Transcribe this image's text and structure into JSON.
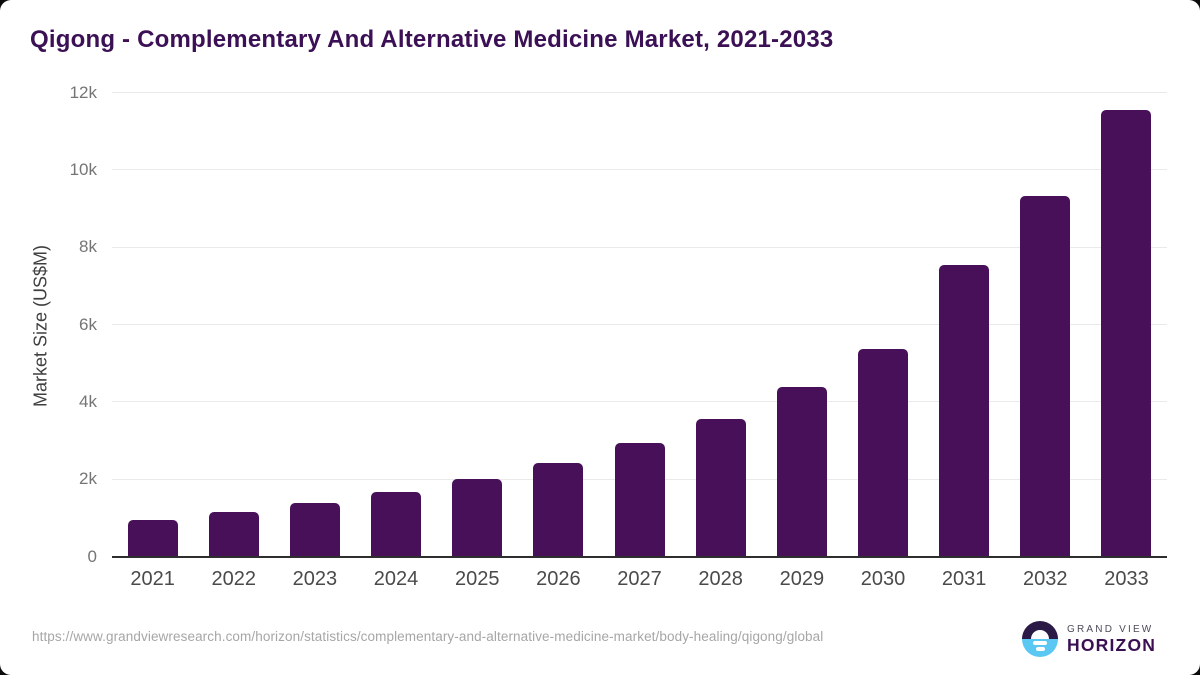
{
  "title": "Qigong - Complementary And Alternative Medicine Market, 2021-2033",
  "colors": {
    "bar": "#471058",
    "title_text": "#3b1054",
    "gridline": "#eaeaea",
    "axis_line": "#2e2e2e",
    "y_tick_text": "#757575",
    "x_tick_text": "#4a4a4a",
    "url_text": "#a6a6a6",
    "logo_dark": "#2b1a46",
    "logo_blue": "#5ac8f2"
  },
  "chart_data": {
    "type": "bar",
    "title": "Qigong - Complementary And Alternative Medicine Market, 2021-2033",
    "categories": [
      "2021",
      "2022",
      "2023",
      "2024",
      "2025",
      "2026",
      "2027",
      "2028",
      "2029",
      "2030",
      "2031",
      "2032",
      "2033"
    ],
    "values": [
      960,
      1160,
      1400,
      1670,
      2010,
      2430,
      2940,
      3560,
      4390,
      5370,
      7560,
      9330,
      11550
    ],
    "xlabel": "",
    "ylabel": "Market Size (US$M)",
    "ylim": [
      0,
      12000
    ],
    "yticks": [
      {
        "value": 0,
        "label": "0"
      },
      {
        "value": 2000,
        "label": "2k"
      },
      {
        "value": 4000,
        "label": "4k"
      },
      {
        "value": 6000,
        "label": "6k"
      },
      {
        "value": 8000,
        "label": "8k"
      },
      {
        "value": 10000,
        "label": "10k"
      },
      {
        "value": 12000,
        "label": "12k"
      }
    ],
    "grid": "horizontal",
    "legend": "none",
    "bar_color": "#471058"
  },
  "footer": {
    "source_url": "https://www.grandviewresearch.com/horizon/statistics/complementary-and-alternative-medicine-market/body-healing/qigong/global",
    "logo": {
      "line1": "GRAND VIEW",
      "line2": "HORIZON"
    }
  }
}
